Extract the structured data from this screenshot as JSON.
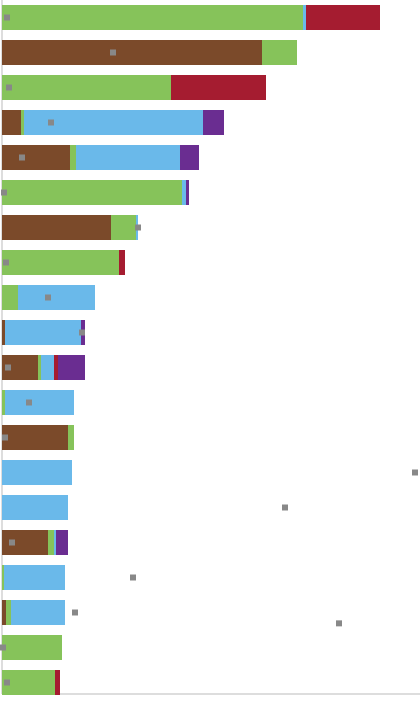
{
  "chart_data": {
    "type": "stacked-bar-horizontal",
    "categories": [
      null,
      null,
      null,
      null,
      null,
      null,
      null,
      null,
      null,
      null,
      null,
      null,
      null,
      null,
      null,
      null,
      null,
      null,
      null,
      null
    ],
    "xlim": [
      0,
      418
    ],
    "ylim": [
      -0.5,
      19.5
    ],
    "series": [
      {
        "name": "brown",
        "color": "#7b4a2a",
        "values": [
          null,
          260,
          null,
          19,
          68,
          null,
          109,
          null,
          null,
          3,
          36,
          null,
          66,
          null,
          null,
          46,
          null,
          4,
          null,
          null
        ]
      },
      {
        "name": "green",
        "color": "#86c35a",
        "values": [
          301,
          35,
          169,
          3,
          6,
          180,
          25,
          117,
          16,
          null,
          3,
          3,
          6,
          null,
          null,
          6,
          2,
          5,
          60,
          53
        ]
      },
      {
        "name": "blue",
        "color": "#6ab9ea",
        "values": [
          3,
          null,
          null,
          179,
          104,
          4,
          2,
          null,
          77,
          76,
          13,
          69,
          null,
          70,
          66,
          2,
          61,
          54,
          null,
          null
        ]
      },
      {
        "name": "red",
        "color": "#a51c30",
        "values": [
          74,
          null,
          95,
          null,
          null,
          null,
          null,
          6,
          null,
          null,
          4,
          null,
          null,
          null,
          null,
          null,
          null,
          null,
          null,
          5
        ]
      },
      {
        "name": "purple",
        "color": "#6a2d91",
        "values": [
          null,
          null,
          null,
          21,
          19,
          3,
          null,
          null,
          null,
          4,
          27,
          null,
          null,
          null,
          null,
          12,
          null,
          null,
          null,
          null
        ]
      }
    ],
    "markers": {
      "color": "#888888",
      "x": [
        5,
        111,
        7,
        49,
        20,
        2,
        136,
        4,
        46,
        80,
        6,
        27,
        3,
        413,
        283,
        10,
        131,
        73,
        337,
        1,
        5
      ],
      "y": [
        0,
        1,
        2,
        3,
        4,
        5,
        6,
        7,
        8,
        9,
        10,
        11,
        12,
        13,
        14,
        15,
        16,
        17,
        17.31,
        18,
        19
      ]
    }
  }
}
